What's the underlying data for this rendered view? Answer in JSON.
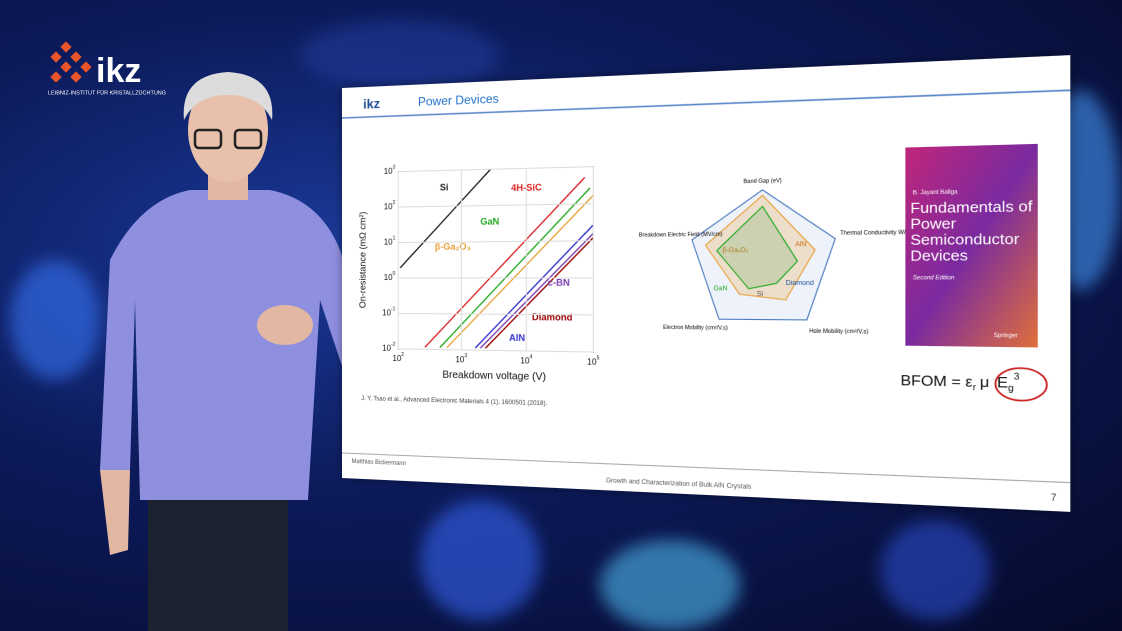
{
  "logo": {
    "name": "ikz",
    "subtitle": "LEIBNIZ-INSTITUT FÜR KRISTALLZÜCHTUNG"
  },
  "slide": {
    "logo": "ikz",
    "title": "Power Devices",
    "plot": {
      "y_label": "On-resistance (mΩ cm²)",
      "x_label": "Breakdown voltage (V)",
      "yticks": [
        {
          "base": "10",
          "exp": "3"
        },
        {
          "base": "10",
          "exp": "2"
        },
        {
          "base": "10",
          "exp": "1"
        },
        {
          "base": "10",
          "exp": "0"
        },
        {
          "base": "10",
          "exp": "-1"
        },
        {
          "base": "10",
          "exp": "-2"
        }
      ],
      "xticks": [
        {
          "base": "10",
          "exp": "2"
        },
        {
          "base": "10",
          "exp": "3"
        },
        {
          "base": "10",
          "exp": "4"
        },
        {
          "base": "10",
          "exp": "5"
        }
      ],
      "materials": [
        "Si",
        "4H-SiC",
        "GaN",
        "β-Ga₂O₃",
        "c-BN",
        "Diamond",
        "AlN"
      ]
    },
    "citation": "J. Y. Tsao et al., Advanced Electronic Materials 4 (1), 1600501 (2018).",
    "radar": {
      "axes": [
        "Band Gap (eV)",
        "Thermal Conductivity W/cm.K",
        "Hole Mobility (cm²/V.s)",
        "Electron Mobility (cm²/V.s)",
        "Breakdown Electric Field (MV/cm)"
      ],
      "materials": [
        "β-Ga₂O₃",
        "AlN",
        "GaN",
        "Si",
        "Diamond"
      ]
    },
    "book": {
      "author": "B. Jayant Baliga",
      "title": "Fundamentals of Power Semiconductor Devices",
      "edition": "Second Edition",
      "publisher": "Springer"
    },
    "formula": {
      "lhs": "BFOM = ε",
      "sub_r": "r",
      "mu": "μ",
      "e": "E",
      "sub_g": "g",
      "exp": "3"
    },
    "footer": {
      "author": "Matthias Bickermann",
      "talk": "Growth and Characterization of Bulk AlN Crystals",
      "page": "7"
    }
  }
}
